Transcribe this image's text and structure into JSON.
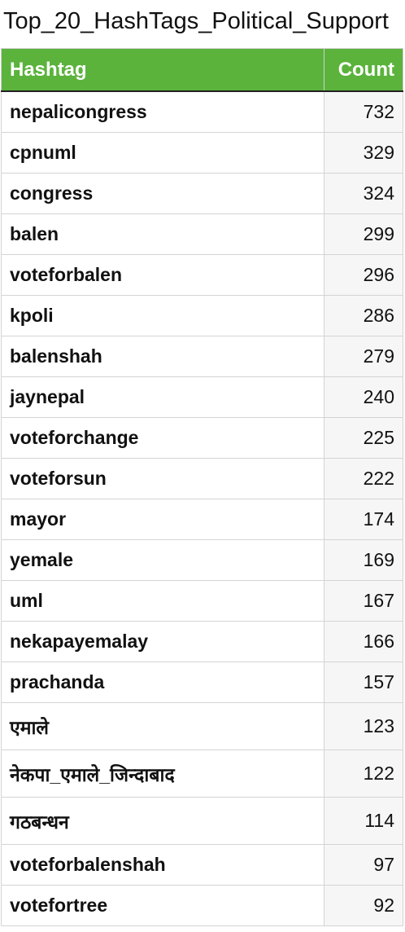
{
  "title": "Top_20_HashTags_Political_Support",
  "table": {
    "headers": {
      "hashtag": "Hashtag",
      "count": "Count"
    },
    "rows": [
      {
        "hashtag": "nepalicongress",
        "count": "732"
      },
      {
        "hashtag": "cpnuml",
        "count": "329"
      },
      {
        "hashtag": "congress",
        "count": "324"
      },
      {
        "hashtag": "balen",
        "count": "299"
      },
      {
        "hashtag": "voteforbalen",
        "count": "296"
      },
      {
        "hashtag": "kpoli",
        "count": "286"
      },
      {
        "hashtag": "balenshah",
        "count": "279"
      },
      {
        "hashtag": "jaynepal",
        "count": "240"
      },
      {
        "hashtag": "voteforchange",
        "count": "225"
      },
      {
        "hashtag": "voteforsun",
        "count": "222"
      },
      {
        "hashtag": "mayor",
        "count": "174"
      },
      {
        "hashtag": "yemale",
        "count": "169"
      },
      {
        "hashtag": "uml",
        "count": "167"
      },
      {
        "hashtag": "nekapayemalay",
        "count": "166"
      },
      {
        "hashtag": "prachanda",
        "count": "157"
      },
      {
        "hashtag": "एमाले",
        "count": "123"
      },
      {
        "hashtag": "नेकपा_एमाले_जिन्दाबाद",
        "count": "122"
      },
      {
        "hashtag": "गठबन्धन",
        "count": "114"
      },
      {
        "hashtag": "voteforbalenshah",
        "count": "97"
      },
      {
        "hashtag": "votefortree",
        "count": "92"
      }
    ]
  }
}
